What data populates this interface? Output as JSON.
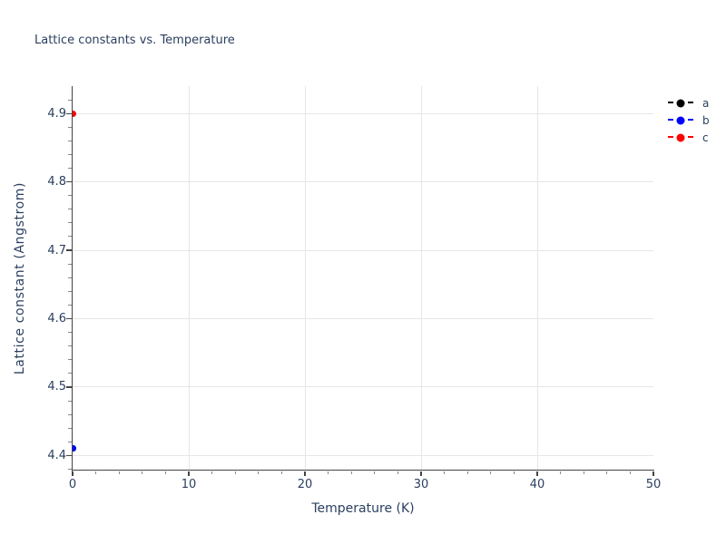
{
  "chart_data": {
    "type": "scatter",
    "title": "Lattice constants vs. Temperature",
    "xlabel": "Temperature (K)",
    "ylabel": "Lattice constant (Angstrom)",
    "x_range": [
      0,
      50
    ],
    "y_range": [
      4.378,
      4.94
    ],
    "x_ticks": [
      0,
      10,
      20,
      30,
      40,
      50
    ],
    "y_ticks": [
      4.4,
      4.5,
      4.6,
      4.7,
      4.8,
      4.9
    ],
    "x_minor_tick_step": 2,
    "y_minor_tick_step": 0.02,
    "grid": true,
    "legend_position": "outside-top-right",
    "marker_style": "circle",
    "line_style": "dashed",
    "series": [
      {
        "name": "a",
        "color": "#000000",
        "x": [
          0
        ],
        "y": [
          4.41
        ]
      },
      {
        "name": "b",
        "color": "#0000ff",
        "x": [
          0
        ],
        "y": [
          4.41
        ]
      },
      {
        "name": "c",
        "color": "#ff0000",
        "x": [
          0
        ],
        "y": [
          4.9
        ]
      }
    ],
    "colors": {
      "text": "#2a3f5f",
      "axis": "#444444",
      "grid": "#e6e6e6",
      "minor_tick": "#888888",
      "background": "#ffffff"
    }
  }
}
